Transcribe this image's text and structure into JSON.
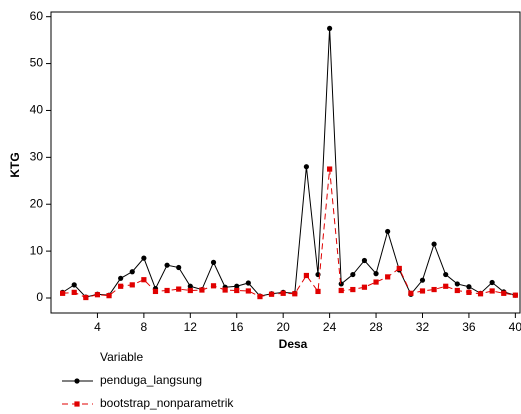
{
  "chart_data": {
    "type": "line",
    "x_label": "Desa",
    "y_label": "KTG",
    "legend_title": "Variable",
    "x": [
      1,
      2,
      3,
      4,
      5,
      6,
      7,
      8,
      9,
      10,
      11,
      12,
      13,
      14,
      15,
      16,
      17,
      18,
      19,
      20,
      21,
      22,
      23,
      24,
      25,
      26,
      27,
      28,
      29,
      30,
      31,
      32,
      33,
      34,
      35,
      36,
      37,
      38,
      39,
      40
    ],
    "series": [
      {
        "name": "penduga_langsung",
        "color": "#000000",
        "marker": "circle",
        "dash": false,
        "values": [
          1.2,
          2.8,
          0.2,
          0.8,
          0.6,
          4.2,
          5.6,
          8.5,
          2.0,
          7.0,
          6.5,
          2.5,
          1.8,
          7.6,
          2.3,
          2.5,
          3.2,
          0.4,
          0.9,
          1.2,
          1.0,
          28,
          5.0,
          57.5,
          3.0,
          5.0,
          8.0,
          5.2,
          14.2,
          6.0,
          0.8,
          3.8,
          11.5,
          5.0,
          3.0,
          2.4,
          1.0,
          3.3,
          1.3,
          0.6
        ]
      },
      {
        "name": "bootstrap_nonparametrik",
        "color": "#e00000",
        "marker": "square",
        "dash": true,
        "values": [
          1.0,
          1.2,
          0.1,
          0.7,
          0.5,
          2.5,
          2.8,
          3.9,
          1.4,
          1.6,
          1.9,
          1.6,
          1.7,
          2.6,
          1.7,
          1.6,
          1.5,
          0.3,
          0.8,
          1.0,
          0.9,
          4.8,
          1.4,
          27.5,
          1.6,
          1.8,
          2.3,
          3.4,
          4.5,
          6.3,
          1.0,
          1.5,
          1.8,
          2.5,
          1.6,
          1.2,
          0.9,
          1.5,
          1.0,
          0.6
        ]
      }
    ],
    "xlim": [
      0,
      40.4
    ],
    "xticks": [
      4,
      8,
      12,
      16,
      20,
      24,
      28,
      32,
      36,
      40
    ],
    "ylim": [
      -3.2,
      61
    ],
    "yticks": [
      0,
      10,
      20,
      30,
      40,
      50,
      60
    ],
    "grid": false,
    "legend": "bottom-left"
  }
}
